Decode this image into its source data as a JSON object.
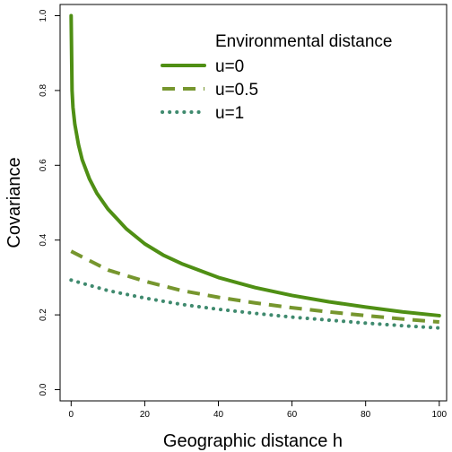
{
  "chart_data": {
    "type": "line",
    "title": "",
    "xlabel": "Geographic distance h",
    "ylabel": "Covariance",
    "xlim": [
      -3,
      102
    ],
    "ylim": [
      -0.03,
      1.03
    ],
    "x_ticks": [
      0,
      20,
      40,
      60,
      80,
      100
    ],
    "y_ticks": [
      0.0,
      0.2,
      0.4,
      0.6,
      0.8,
      1.0
    ],
    "x_tick_labels": [
      "0",
      "20",
      "40",
      "60",
      "80",
      "100"
    ],
    "y_tick_labels": [
      "0.0",
      "0.2",
      "0.4",
      "0.6",
      "0.8",
      "1.0"
    ],
    "grid": false,
    "legend": {
      "title": "Environmental distance",
      "placement": "top-right"
    },
    "series": [
      {
        "name": "u=0",
        "color": "#4f8f14",
        "line_style": "solid",
        "x": [
          0,
          0.25,
          0.5,
          1,
          2,
          3,
          5,
          7,
          10,
          15,
          20,
          25,
          30,
          40,
          50,
          60,
          70,
          80,
          90,
          100
        ],
        "y": [
          1.0,
          0.8,
          0.755,
          0.71,
          0.655,
          0.615,
          0.563,
          0.525,
          0.483,
          0.43,
          0.39,
          0.36,
          0.337,
          0.3,
          0.273,
          0.252,
          0.235,
          0.221,
          0.208,
          0.198
        ]
      },
      {
        "name": "u=0.5",
        "color": "#76962e",
        "line_style": "dashed",
        "x": [
          0,
          10,
          20,
          30,
          40,
          50,
          60,
          70,
          80,
          90,
          100
        ],
        "y": [
          0.37,
          0.32,
          0.29,
          0.265,
          0.247,
          0.232,
          0.219,
          0.208,
          0.198,
          0.189,
          0.181
        ]
      },
      {
        "name": "u=1",
        "color": "#3f8a6e",
        "line_style": "dotted",
        "x": [
          0,
          10,
          20,
          30,
          40,
          50,
          60,
          70,
          80,
          90,
          100
        ],
        "y": [
          0.293,
          0.265,
          0.245,
          0.228,
          0.215,
          0.204,
          0.194,
          0.186,
          0.178,
          0.171,
          0.165
        ]
      }
    ]
  }
}
